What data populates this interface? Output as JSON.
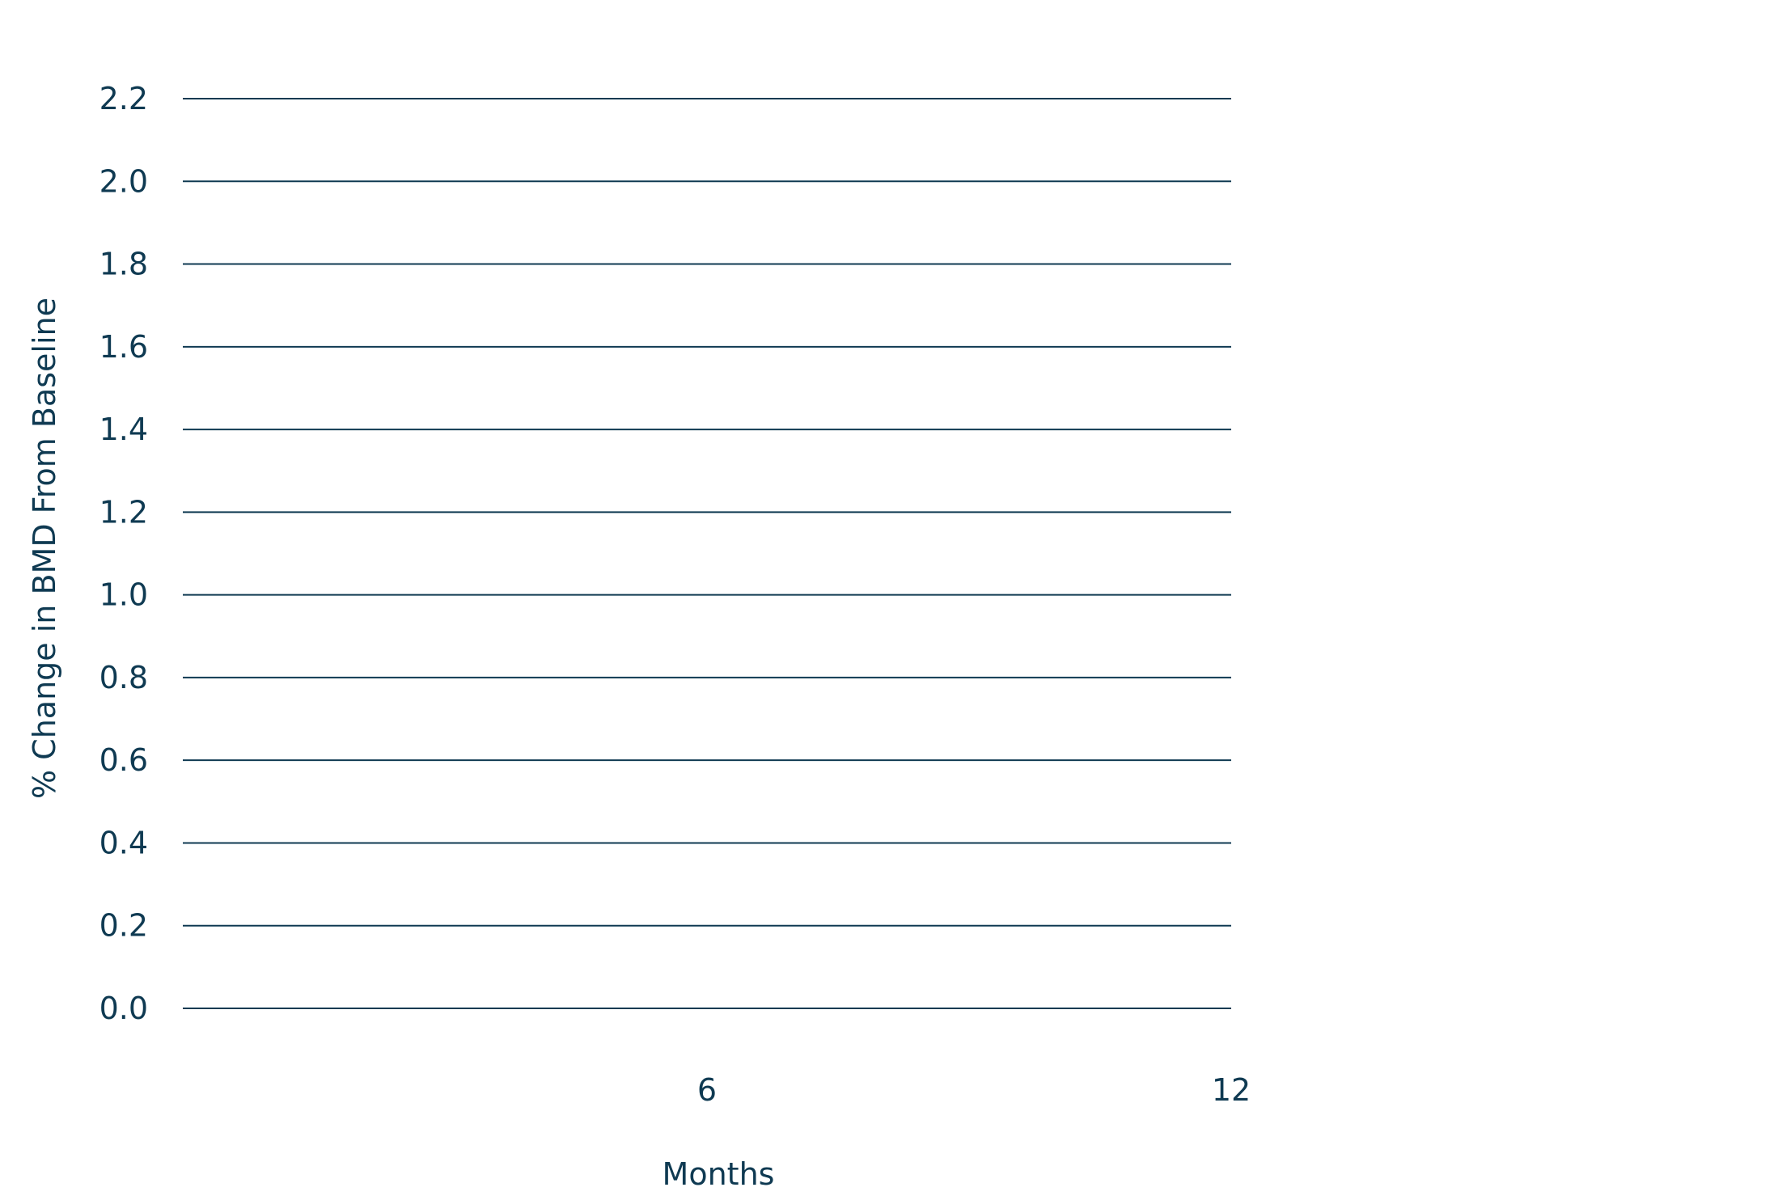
{
  "chart_data": {
    "type": "line",
    "title": "",
    "xlabel": "Months",
    "ylabel": "% Change in BMD From Baseline",
    "x_ticks": [
      {
        "value": 6,
        "label": "6"
      },
      {
        "value": 12,
        "label": "12"
      }
    ],
    "y_ticks": [
      {
        "value": 0.0,
        "label": "0.0"
      },
      {
        "value": 0.2,
        "label": "0.2"
      },
      {
        "value": 0.4,
        "label": "0.4"
      },
      {
        "value": 0.6,
        "label": "0.6"
      },
      {
        "value": 0.8,
        "label": "0.8"
      },
      {
        "value": 1.0,
        "label": "1.0"
      },
      {
        "value": 1.2,
        "label": "1.2"
      },
      {
        "value": 1.4,
        "label": "1.4"
      },
      {
        "value": 1.6,
        "label": "1.6"
      },
      {
        "value": 1.8,
        "label": "1.8"
      },
      {
        "value": 2.0,
        "label": "2.0"
      },
      {
        "value": 2.2,
        "label": "2.2"
      }
    ],
    "xlim": [
      0,
      12
    ],
    "ylim": [
      0,
      2.2
    ],
    "grid": "horizontal",
    "series": [],
    "colors": {
      "text": "#0f3a52",
      "grid": "#0f3a52"
    }
  }
}
